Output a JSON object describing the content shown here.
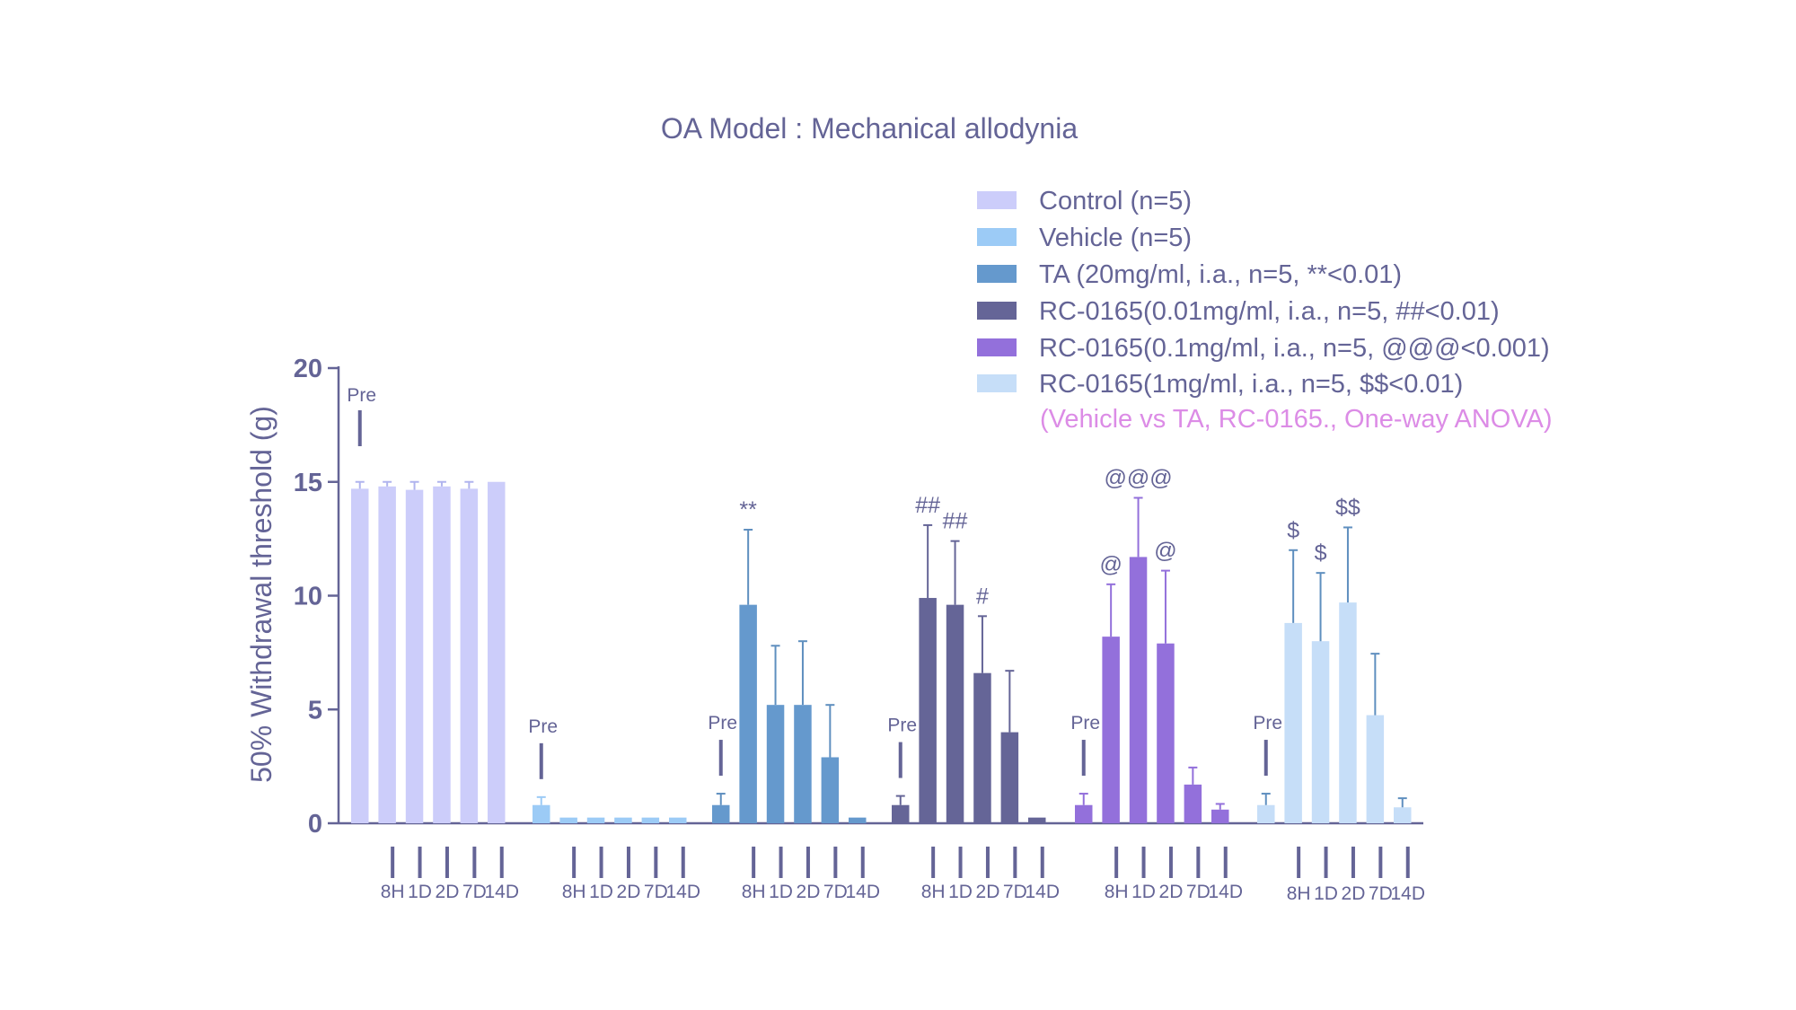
{
  "chart_data": {
    "type": "bar",
    "title": "OA Model : Mechanical allodynia",
    "ylabel": "50% Withdrawal threshold (g)",
    "xlabel": "",
    "ylim": [
      0,
      20
    ],
    "yticks": [
      0,
      5,
      10,
      15,
      20
    ],
    "legend_position": "top-right",
    "legend_note": "(Vehicle vs TA, RC-0165., One-way ANOVA)",
    "pre_label": "Pre",
    "grid": false,
    "colors": {
      "axis": "#646496",
      "text": "#646496",
      "note": "#dc8ce6",
      "errorbar": "#5f8fbf"
    },
    "groups": [
      {
        "name": "Control (n=5)",
        "color": "#cccdfa",
        "err_color": "#b0b4ee",
        "x": [
          "Pre",
          "8H",
          "1D",
          "2D",
          "7D",
          "14D"
        ],
        "values": [
          14.7,
          14.8,
          14.65,
          14.8,
          14.7,
          15.0
        ],
        "errors": [
          0.3,
          0.2,
          0.35,
          0.2,
          0.3,
          0.0
        ],
        "sig": [
          "",
          "",
          "",
          "",
          "",
          ""
        ]
      },
      {
        "name": "Vehicle (n=5)",
        "color": "#9ccbf6",
        "err_color": "#9ccbf6",
        "x": [
          "Pre",
          "8H",
          "1D",
          "2D",
          "7D",
          "14D"
        ],
        "values": [
          0.8,
          0.25,
          0.25,
          0.25,
          0.25,
          0.25
        ],
        "errors": [
          0.35,
          0.0,
          0.0,
          0.0,
          0.0,
          0.0
        ],
        "sig": [
          "",
          "",
          "",
          "",
          "",
          ""
        ]
      },
      {
        "name": "TA (20mg/ml, i.a., n=5, **<0.01)",
        "color": "#6599cd",
        "err_color": "#5f8fbf",
        "x": [
          "Pre",
          "8H",
          "1D",
          "2D",
          "7D",
          "14D"
        ],
        "values": [
          0.8,
          9.6,
          5.2,
          5.2,
          2.9,
          0.25
        ],
        "errors": [
          0.5,
          3.3,
          2.6,
          2.8,
          2.3,
          0.0
        ],
        "sig": [
          "",
          "**",
          "",
          "",
          "",
          ""
        ]
      },
      {
        "name": "RC-0165(0.01mg/ml, i.a., n=5, ##<0.01)",
        "color": "#656597",
        "err_color": "#656597",
        "x": [
          "Pre",
          "8H",
          "1D",
          "2D",
          "7D",
          "14D"
        ],
        "values": [
          0.8,
          9.9,
          9.6,
          6.6,
          4.0,
          0.25
        ],
        "errors": [
          0.4,
          3.2,
          2.8,
          2.5,
          2.7,
          0.0
        ],
        "sig": [
          "",
          "##",
          "##",
          "#",
          "",
          ""
        ]
      },
      {
        "name": "RC-0165(0.1mg/ml, i.a., n=5, @@@<0.001)",
        "color": "#9370db",
        "err_color": "#9370db",
        "x": [
          "Pre",
          "8H",
          "1D",
          "2D",
          "7D",
          "14D"
        ],
        "values": [
          0.8,
          8.2,
          11.7,
          7.9,
          1.7,
          0.6
        ],
        "errors": [
          0.5,
          2.3,
          2.6,
          3.2,
          0.75,
          0.25
        ],
        "sig": [
          "",
          "@",
          "@@@",
          "@",
          "",
          ""
        ]
      },
      {
        "name": "RC-0165(1mg/ml, i.a., n=5, $$<0.01)",
        "color": "#c6def8",
        "err_color": "#5f8fbf",
        "x": [
          "Pre",
          "8H",
          "1D",
          "2D",
          "7D",
          "14D"
        ],
        "values": [
          0.8,
          8.8,
          8.0,
          9.7,
          4.75,
          0.7
        ],
        "errors": [
          0.5,
          3.2,
          3.0,
          3.3,
          2.7,
          0.4
        ],
        "sig": [
          "",
          "$",
          "$",
          "$$",
          "",
          ""
        ]
      }
    ]
  }
}
